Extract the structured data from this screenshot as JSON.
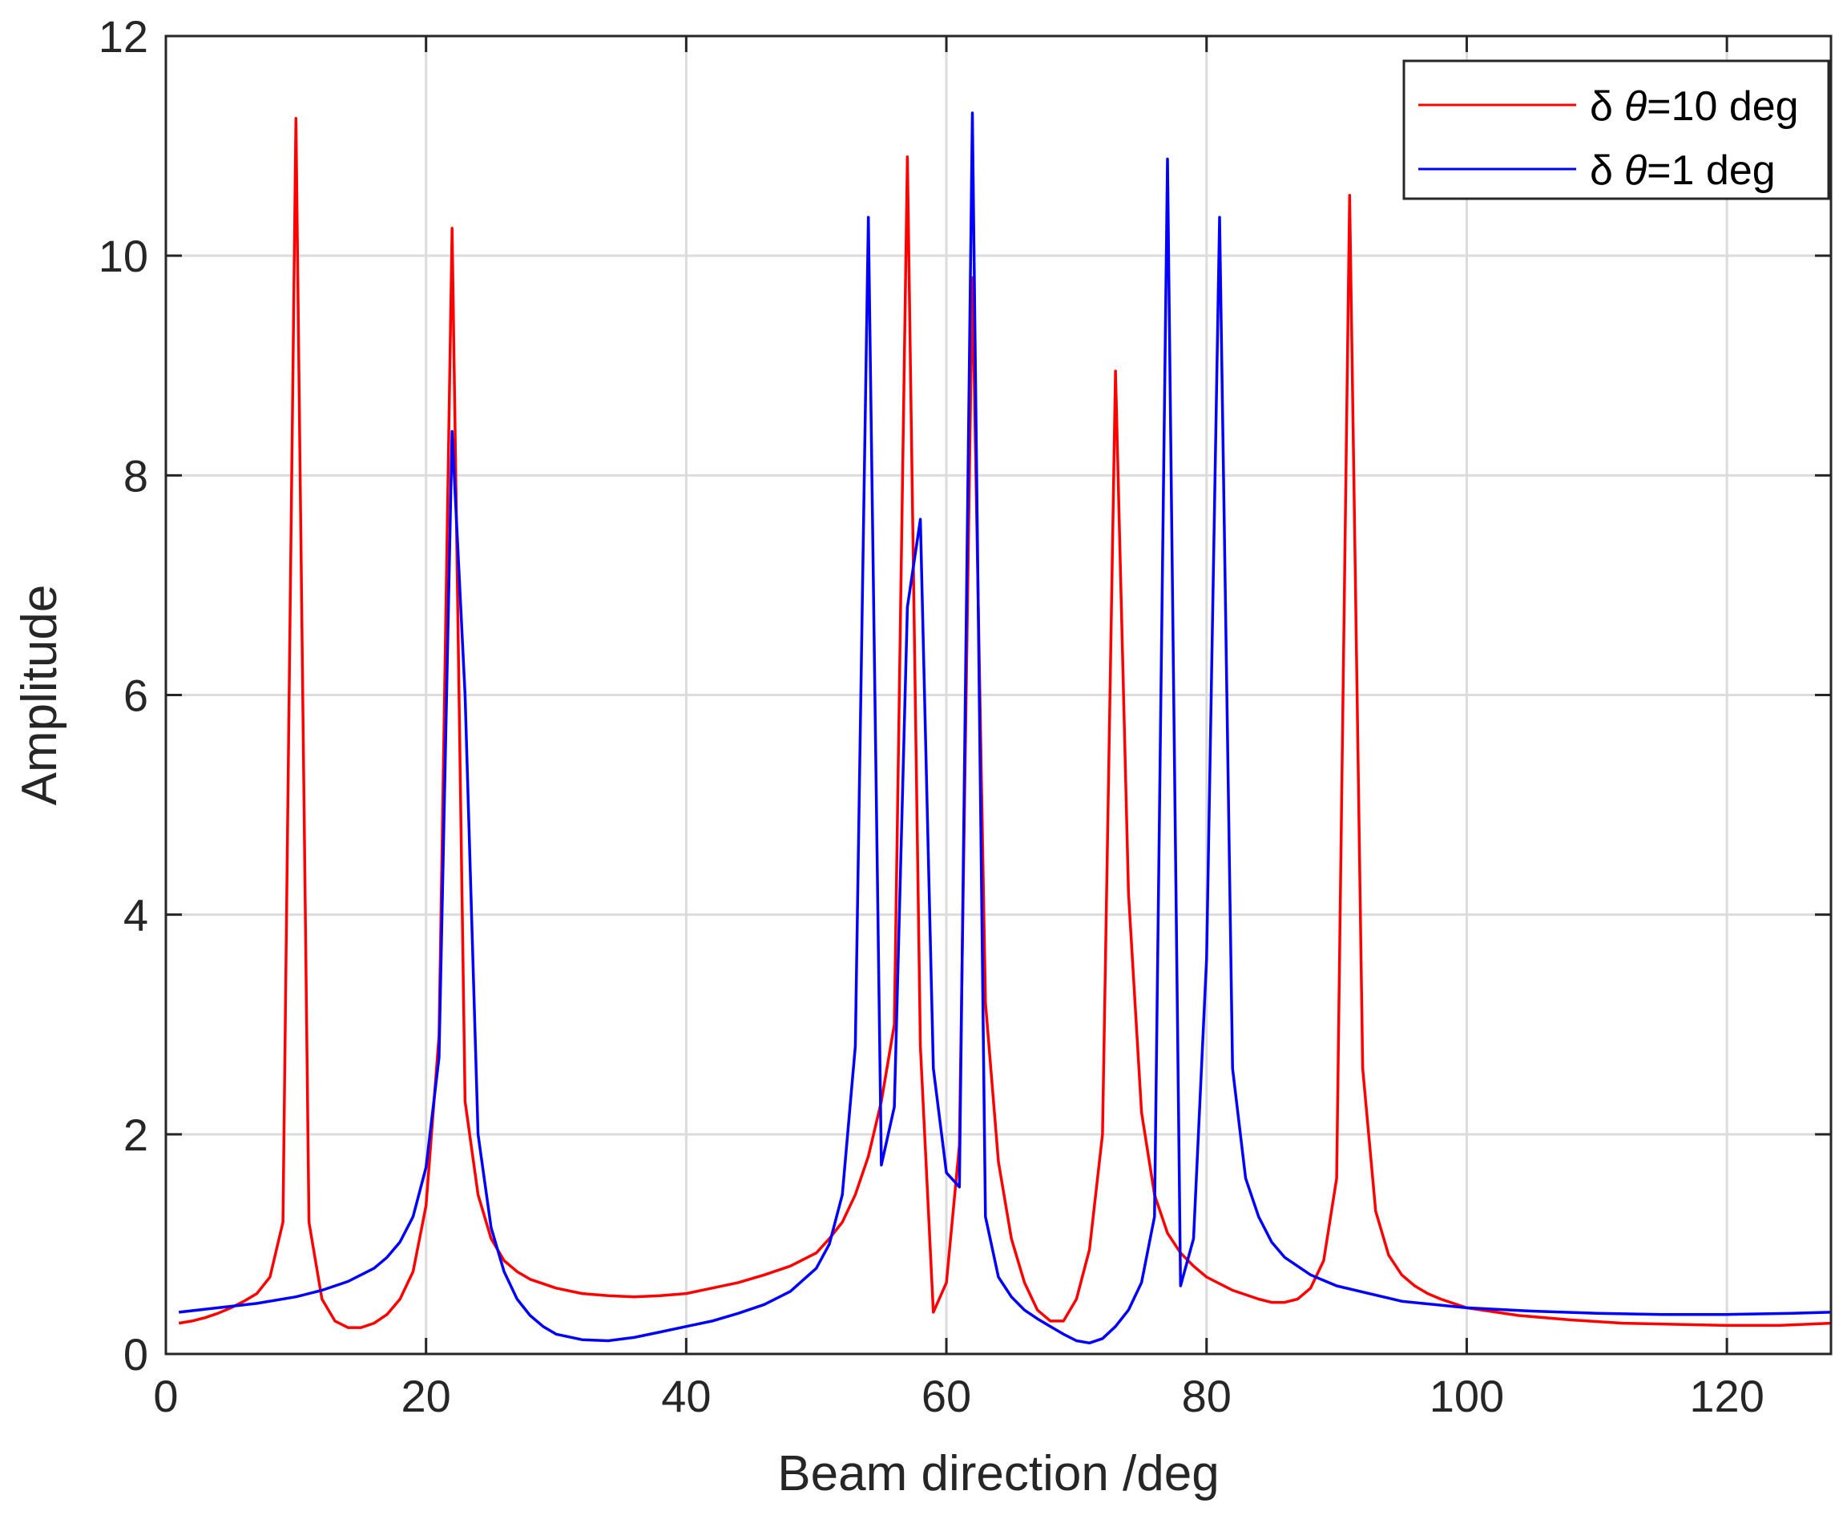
{
  "chart_data": {
    "type": "line",
    "title": "",
    "xlabel": "Beam direction /deg",
    "ylabel": "Amplitude",
    "xlim": [
      0,
      128
    ],
    "ylim": [
      0,
      12
    ],
    "xticks": [
      0,
      20,
      40,
      60,
      80,
      100,
      120
    ],
    "yticks": [
      0,
      2,
      4,
      6,
      8,
      10,
      12
    ],
    "xtick_labels": [
      "0",
      "20",
      "40",
      "60",
      "80",
      "100",
      "120"
    ],
    "ytick_labels": [
      "0",
      "2",
      "4",
      "6",
      "8",
      "10",
      "12"
    ],
    "grid": true,
    "legend_position": "top-right",
    "series": [
      {
        "name": "δ θ=10 deg",
        "legend_prefix": "δ",
        "legend_symbol": "θ",
        "legend_suffix": "=10 deg",
        "color": "#ff0000",
        "x": [
          1,
          2,
          3,
          4,
          5,
          6,
          7,
          8,
          9,
          10,
          11,
          12,
          13,
          14,
          15,
          16,
          17,
          18,
          19,
          20,
          21,
          22,
          23,
          24,
          25,
          26,
          27,
          28,
          30,
          32,
          34,
          36,
          38,
          40,
          42,
          44,
          46,
          48,
          50,
          51,
          52,
          53,
          54,
          55,
          56,
          57,
          58,
          59,
          60,
          61,
          62,
          63,
          64,
          65,
          66,
          67,
          68,
          69,
          70,
          71,
          72,
          73,
          74,
          75,
          76,
          77,
          78,
          79,
          80,
          82,
          84,
          85,
          86,
          87,
          88,
          89,
          90,
          91,
          92,
          93,
          94,
          95,
          96,
          97,
          98,
          100,
          104,
          108,
          112,
          116,
          120,
          124,
          128
        ],
        "values": [
          0.28,
          0.3,
          0.33,
          0.37,
          0.42,
          0.48,
          0.55,
          0.7,
          1.2,
          11.25,
          1.2,
          0.5,
          0.3,
          0.24,
          0.24,
          0.28,
          0.36,
          0.5,
          0.75,
          1.35,
          2.9,
          10.25,
          2.3,
          1.45,
          1.05,
          0.85,
          0.75,
          0.68,
          0.6,
          0.55,
          0.53,
          0.52,
          0.53,
          0.55,
          0.6,
          0.65,
          0.72,
          0.8,
          0.92,
          1.05,
          1.2,
          1.45,
          1.8,
          2.3,
          3.0,
          10.9,
          2.8,
          0.38,
          0.65,
          1.9,
          9.8,
          3.2,
          1.75,
          1.05,
          0.65,
          0.4,
          0.3,
          0.3,
          0.5,
          0.95,
          2.0,
          8.95,
          4.2,
          2.2,
          1.45,
          1.1,
          0.92,
          0.8,
          0.7,
          0.58,
          0.5,
          0.47,
          0.47,
          0.5,
          0.6,
          0.85,
          1.6,
          10.55,
          2.6,
          1.3,
          0.9,
          0.72,
          0.62,
          0.55,
          0.5,
          0.42,
          0.35,
          0.31,
          0.28,
          0.27,
          0.26,
          0.26,
          0.28
        ]
      },
      {
        "name": "δ θ=1 deg",
        "legend_prefix": "δ",
        "legend_symbol": "θ",
        "legend_suffix": "=1 deg",
        "color": "#0000ff",
        "x": [
          1,
          4,
          7,
          10,
          12,
          14,
          15,
          16,
          17,
          18,
          19,
          20,
          21,
          22,
          23,
          24,
          25,
          26,
          27,
          28,
          29,
          30,
          32,
          34,
          36,
          38,
          40,
          42,
          44,
          46,
          48,
          50,
          51,
          52,
          53,
          54,
          55,
          56,
          57,
          58,
          59,
          60,
          61,
          62,
          63,
          64,
          65,
          66,
          67,
          68,
          69,
          70,
          71,
          72,
          73,
          74,
          75,
          76,
          77,
          78,
          79,
          80,
          81,
          82,
          83,
          84,
          85,
          86,
          88,
          90,
          95,
          100,
          105,
          110,
          115,
          120,
          125,
          128
        ],
        "values": [
          0.38,
          0.42,
          0.46,
          0.52,
          0.58,
          0.66,
          0.72,
          0.78,
          0.88,
          1.02,
          1.25,
          1.7,
          2.7,
          8.4,
          6.0,
          2.0,
          1.15,
          0.75,
          0.5,
          0.35,
          0.25,
          0.18,
          0.13,
          0.12,
          0.15,
          0.2,
          0.25,
          0.3,
          0.37,
          0.45,
          0.57,
          0.78,
          1.0,
          1.45,
          2.8,
          10.35,
          1.72,
          2.25,
          6.8,
          7.6,
          2.6,
          1.65,
          1.52,
          11.3,
          1.25,
          0.7,
          0.52,
          0.4,
          0.32,
          0.25,
          0.18,
          0.12,
          0.1,
          0.14,
          0.25,
          0.4,
          0.65,
          1.25,
          10.88,
          0.62,
          1.05,
          3.6,
          10.35,
          2.6,
          1.6,
          1.25,
          1.02,
          0.88,
          0.72,
          0.62,
          0.48,
          0.42,
          0.39,
          0.37,
          0.36,
          0.36,
          0.37,
          0.38
        ]
      }
    ]
  }
}
